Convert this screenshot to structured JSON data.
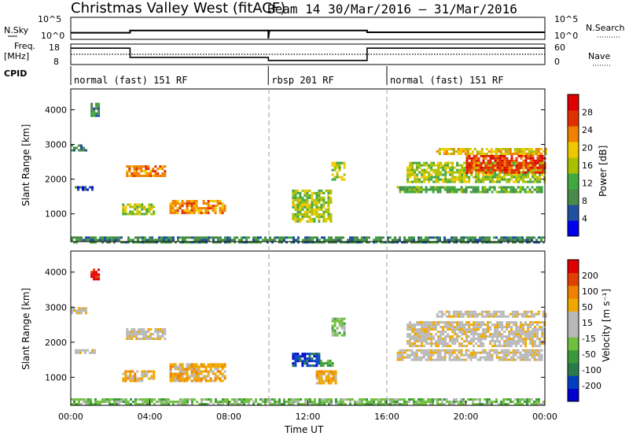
{
  "title": "Christmas Valley West (fitACF)",
  "subtitle": "Beam 14  30/Mar/2016 – 31/Mar/2016",
  "colors": {
    "power": [
      "#0000ee",
      "#2050a0",
      "#4a8a4a",
      "#3fa83f",
      "#a8c000",
      "#f0c800",
      "#f08000",
      "#e03000",
      "#e00000"
    ],
    "velocity": [
      "#e00000",
      "#e04000",
      "#f08000",
      "#f0a800",
      "#b8b8b8",
      "#b8b8b8",
      "#70c040",
      "#3a9a3a",
      "#2a7a4a",
      "#0040c0",
      "#0000d0"
    ]
  },
  "chart_data": [
    {
      "type": "line",
      "panel": "N.Sky / N.Search",
      "labels": {
        "left_top": "N.Sky",
        "right_top": "N.Search"
      },
      "left_ticks": [
        "10^5",
        "10^0"
      ],
      "right_ticks": [
        "10^5",
        "10^0"
      ],
      "series": [
        {
          "values": [
            [
              0,
              1.5
            ],
            [
              3,
              1.5
            ],
            [
              3,
              2.0
            ],
            [
              10,
              2.0
            ],
            [
              10,
              0.2
            ],
            [
              10.05,
              2.0
            ],
            [
              15,
              2.0
            ],
            [
              15,
              1.6
            ],
            [
              24,
              1.6
            ]
          ]
        }
      ]
    },
    {
      "type": "line",
      "panel": "Freq / Nave",
      "labels": {
        "left_top": "Freq.",
        "left_unit": "[MHz]",
        "right_top": "Nave"
      },
      "left_ticks": [
        "18",
        "8"
      ],
      "right_ticks": [
        "60",
        "0"
      ],
      "ylim": [
        8,
        18
      ],
      "series": [
        {
          "values": [
            [
              0,
              16
            ],
            [
              3,
              16
            ],
            [
              3,
              11.5
            ],
            [
              10,
              11.5
            ],
            [
              10,
              10
            ],
            [
              15,
              10
            ],
            [
              15,
              16
            ],
            [
              24,
              16
            ]
          ]
        },
        {
          "values": [
            [
              0,
              13
            ],
            [
              24,
              13
            ]
          ]
        }
      ]
    },
    {
      "type": "table",
      "panel": "CPID",
      "label": "CPID",
      "segments": [
        {
          "start": 0,
          "text": "normal (fast) 151 RF"
        },
        {
          "start": 10,
          "text": "rbsp 201 RF"
        },
        {
          "start": 16,
          "text": "normal (fast) 151 RF"
        }
      ]
    },
    {
      "type": "heatmap",
      "panel": "power",
      "ylabel": "Slant Range [km]",
      "ylim": [
        200,
        4600
      ],
      "yticks": [
        1000,
        2000,
        3000,
        4000
      ],
      "colorbar": {
        "label": "Power [dB]",
        "ticks": [
          "28",
          "24",
          "20",
          "16",
          "12",
          "8",
          "4"
        ]
      },
      "patches": [
        {
          "x": [
            0,
            0.8
          ],
          "y": [
            2800,
            3000
          ],
          "level": 2
        },
        {
          "x": [
            1.0,
            1.4
          ],
          "y": [
            3800,
            4200
          ],
          "level": 2
        },
        {
          "x": [
            0.2,
            1.2
          ],
          "y": [
            1700,
            1800
          ],
          "level": 1
        },
        {
          "x": [
            2.8,
            4.8
          ],
          "y": [
            2100,
            2400
          ],
          "level": 6
        },
        {
          "x": [
            2.6,
            4.2
          ],
          "y": [
            1000,
            1300
          ],
          "level": 4
        },
        {
          "x": [
            5.0,
            7.8
          ],
          "y": [
            1000,
            1400
          ],
          "level": 6
        },
        {
          "x": [
            11.2,
            13.2
          ],
          "y": [
            800,
            1700
          ],
          "level": 4
        },
        {
          "x": [
            13.2,
            13.8
          ],
          "y": [
            2000,
            2500
          ],
          "level": 4
        },
        {
          "x": [
            16.5,
            23.8
          ],
          "y": [
            1600,
            1800
          ],
          "level": 3
        },
        {
          "x": [
            17.0,
            24.0
          ],
          "y": [
            1900,
            2500
          ],
          "level": 4
        },
        {
          "x": [
            20.0,
            24.0
          ],
          "y": [
            2200,
            2700
          ],
          "level": 7
        },
        {
          "x": [
            18.5,
            24.0
          ],
          "y": [
            2700,
            2900
          ],
          "level": 5
        },
        {
          "x": [
            0,
            24.0
          ],
          "y": [
            200,
            350
          ],
          "level": 2
        }
      ]
    },
    {
      "type": "heatmap",
      "panel": "velocity",
      "xlabel": "Time UT",
      "ylabel": "Slant Range [km]",
      "ylim": [
        200,
        4600
      ],
      "yticks": [
        1000,
        2000,
        3000,
        4000
      ],
      "xticks": [
        "00:00",
        "04:00",
        "08:00",
        "12:00",
        "16:00",
        "20:00",
        "00:00"
      ],
      "colorbar": {
        "label": "Velocity [m s⁻¹]",
        "ticks": [
          "200",
          "100",
          "50",
          "15",
          "-15",
          "-50",
          "-100",
          "-200"
        ]
      },
      "patches": [
        {
          "x": [
            0,
            0.8
          ],
          "y": [
            2800,
            3000
          ],
          "level": 4
        },
        {
          "x": [
            1.0,
            1.4
          ],
          "y": [
            3800,
            4100
          ],
          "level": 0
        },
        {
          "x": [
            0.2,
            1.2
          ],
          "y": [
            1700,
            1800
          ],
          "level": 4
        },
        {
          "x": [
            2.8,
            4.8
          ],
          "y": [
            2100,
            2400
          ],
          "level": 4
        },
        {
          "x": [
            2.6,
            4.2
          ],
          "y": [
            900,
            1200
          ],
          "level": 3
        },
        {
          "x": [
            5.0,
            7.8
          ],
          "y": [
            900,
            1400
          ],
          "level": 3
        },
        {
          "x": [
            11.2,
            12.6
          ],
          "y": [
            1300,
            1700
          ],
          "level": 9
        },
        {
          "x": [
            12.6,
            13.2
          ],
          "y": [
            1300,
            1500
          ],
          "level": 7
        },
        {
          "x": [
            12.4,
            13.4
          ],
          "y": [
            800,
            1200
          ],
          "level": 3
        },
        {
          "x": [
            13.2,
            13.8
          ],
          "y": [
            2200,
            2700
          ],
          "level": 6
        },
        {
          "x": [
            16.5,
            23.8
          ],
          "y": [
            1500,
            1800
          ],
          "level": 4
        },
        {
          "x": [
            17.0,
            24.0
          ],
          "y": [
            1900,
            2600
          ],
          "level": 4
        },
        {
          "x": [
            18.5,
            24.0
          ],
          "y": [
            2700,
            2900
          ],
          "level": 4
        },
        {
          "x": [
            0,
            24.0
          ],
          "y": [
            200,
            400
          ],
          "level": 6
        }
      ]
    }
  ]
}
